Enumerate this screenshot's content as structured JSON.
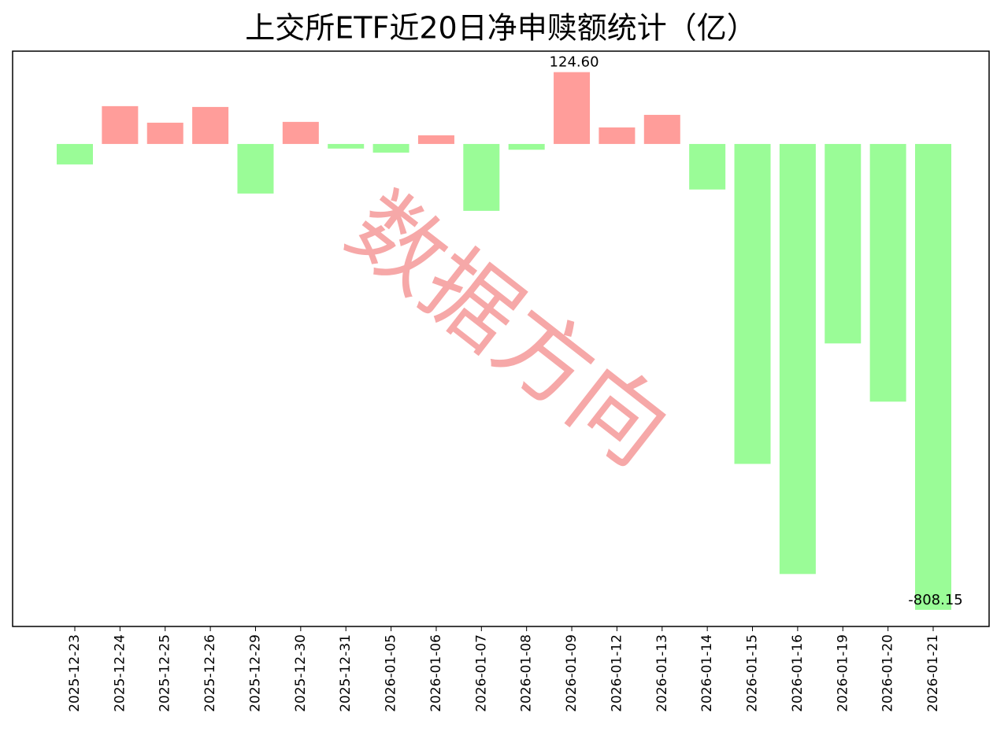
{
  "chart_data": {
    "type": "bar",
    "title": "上交所ETF近20日净申赎额统计（亿）",
    "categories": [
      "2025-12-23",
      "2025-12-24",
      "2025-12-25",
      "2025-12-26",
      "2025-12-29",
      "2025-12-30",
      "2025-12-31",
      "2026-01-05",
      "2026-01-06",
      "2026-01-07",
      "2026-01-08",
      "2026-01-09",
      "2026-01-12",
      "2026-01-13",
      "2026-01-14",
      "2026-01-15",
      "2026-01-16",
      "2026-01-19",
      "2026-01-20",
      "2026-01-21"
    ],
    "values": [
      -35.5,
      65.6,
      36.9,
      64.2,
      -86,
      38.3,
      -8,
      -15,
      15,
      -116,
      -10,
      124.6,
      28.7,
      50.5,
      -79,
      -555,
      -746,
      -346,
      -447,
      -808.15
    ],
    "value_labels": [
      null,
      null,
      null,
      null,
      null,
      null,
      null,
      null,
      null,
      null,
      null,
      "124.60",
      null,
      null,
      null,
      null,
      null,
      null,
      null,
      "-808.15"
    ],
    "positive_color": "#ff9d9a",
    "negative_color": "#9afc97",
    "ylim": [
      -837,
      161
    ],
    "watermark": "数据方向"
  }
}
